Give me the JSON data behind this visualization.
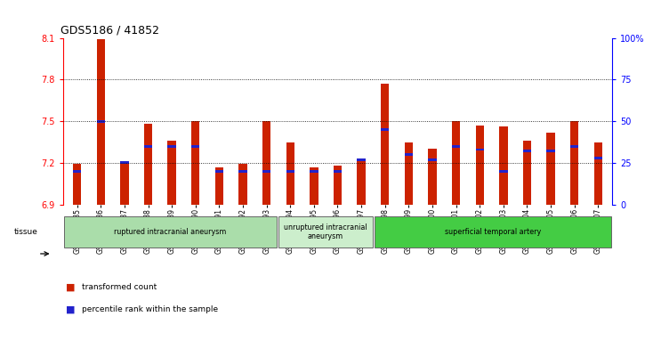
{
  "title": "GDS5186 / 41852",
  "samples": [
    "GSM1306885",
    "GSM1306886",
    "GSM1306887",
    "GSM1306888",
    "GSM1306889",
    "GSM1306890",
    "GSM1306891",
    "GSM1306892",
    "GSM1306893",
    "GSM1306894",
    "GSM1306895",
    "GSM1306896",
    "GSM1306897",
    "GSM1306898",
    "GSM1306899",
    "GSM1306900",
    "GSM1306901",
    "GSM1306902",
    "GSM1306903",
    "GSM1306904",
    "GSM1306905",
    "GSM1306906",
    "GSM1306907"
  ],
  "transformed_count": [
    7.19,
    8.09,
    7.2,
    7.48,
    7.36,
    7.5,
    7.17,
    7.19,
    7.5,
    7.35,
    7.17,
    7.18,
    7.21,
    7.77,
    7.35,
    7.3,
    7.5,
    7.47,
    7.46,
    7.36,
    7.42,
    7.5,
    7.35
  ],
  "percentile_rank": [
    20,
    50,
    25,
    35,
    35,
    35,
    20,
    20,
    20,
    20,
    20,
    20,
    27,
    45,
    30,
    27,
    35,
    33,
    20,
    32,
    32,
    35,
    28
  ],
  "y_min": 6.9,
  "y_max": 8.1,
  "y_ticks": [
    6.9,
    7.2,
    7.5,
    7.8,
    8.1
  ],
  "y2_ticks": [
    0,
    25,
    50,
    75,
    100
  ],
  "bar_color": "#cc2200",
  "blue_color": "#2222cc",
  "groups": [
    {
      "label": "ruptured intracranial aneurysm",
      "start": 0,
      "end": 9,
      "color": "#aaddaa"
    },
    {
      "label": "unruptured intracranial\naneurysm",
      "start": 9,
      "end": 13,
      "color": "#cceecc"
    },
    {
      "label": "superficial temporal artery",
      "start": 13,
      "end": 23,
      "color": "#44cc44"
    }
  ],
  "legend_items": [
    {
      "label": "transformed count",
      "color": "#cc2200"
    },
    {
      "label": "percentile rank within the sample",
      "color": "#2222cc"
    }
  ]
}
